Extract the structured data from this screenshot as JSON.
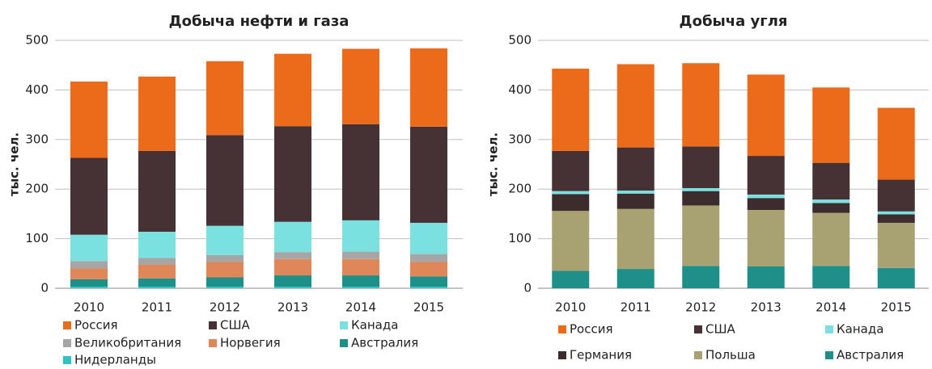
{
  "chart_data": [
    {
      "type": "stacked_bar",
      "title": "Добыча нефти и газа",
      "y_label": "тыс. чел.",
      "categories": [
        "2010",
        "2011",
        "2012",
        "2013",
        "2014",
        "2015"
      ],
      "series": [
        {
          "name": "Россия",
          "color": "#ec6b1a",
          "values": [
            154,
            150,
            149,
            146,
            152,
            158
          ]
        },
        {
          "name": "США",
          "color": "#463234",
          "values": [
            155,
            163,
            183,
            193,
            194,
            194
          ]
        },
        {
          "name": "Канада",
          "color": "#7ae0e0",
          "values": [
            53,
            53,
            59,
            61,
            63,
            63
          ]
        },
        {
          "name": "Великобритания",
          "color": "#a6a6a6",
          "values": [
            15,
            13,
            14,
            14,
            15,
            16
          ]
        },
        {
          "name": "Норвегия",
          "color": "#e0875a",
          "values": [
            22,
            28,
            31,
            33,
            33,
            29
          ]
        },
        {
          "name": "Австралия",
          "color": "#1f8f8a",
          "values": [
            15,
            17,
            19,
            23,
            23,
            21
          ]
        },
        {
          "name": "Нидерланды",
          "color": "#2ec4c4",
          "values": [
            3,
            3,
            3,
            3,
            3,
            3
          ]
        }
      ],
      "ylim": [
        0,
        500
      ],
      "yticks": [
        0,
        100,
        200,
        300,
        400,
        500
      ],
      "grid": true
    },
    {
      "type": "stacked_bar",
      "title": "Добыча угля",
      "y_label": "тыс. чел.",
      "categories": [
        "2010",
        "2011",
        "2012",
        "2013",
        "2014",
        "2015"
      ],
      "series": [
        {
          "name": "Россия",
          "color": "#ec6b1a",
          "values": [
            166,
            168,
            168,
            164,
            152,
            145
          ]
        },
        {
          "name": "США",
          "color": "#463234",
          "values": [
            81,
            87,
            84,
            78,
            74,
            64
          ]
        },
        {
          "name": "Канада",
          "color": "#7ae0e0",
          "values": [
            6,
            6,
            6,
            7,
            7,
            6
          ]
        },
        {
          "name": "Германия",
          "color": "#3d2c2e",
          "values": [
            34,
            31,
            29,
            24,
            20,
            17
          ]
        },
        {
          "name": "Польша",
          "color": "#a8a272",
          "values": [
            121,
            121,
            122,
            114,
            107,
            91
          ]
        },
        {
          "name": "Австралия",
          "color": "#1f8f8a",
          "values": [
            35,
            39,
            45,
            44,
            45,
            41
          ]
        }
      ],
      "ylim": [
        0,
        500
      ],
      "yticks": [
        0,
        100,
        200,
        300,
        400,
        500
      ],
      "grid": true
    }
  ]
}
